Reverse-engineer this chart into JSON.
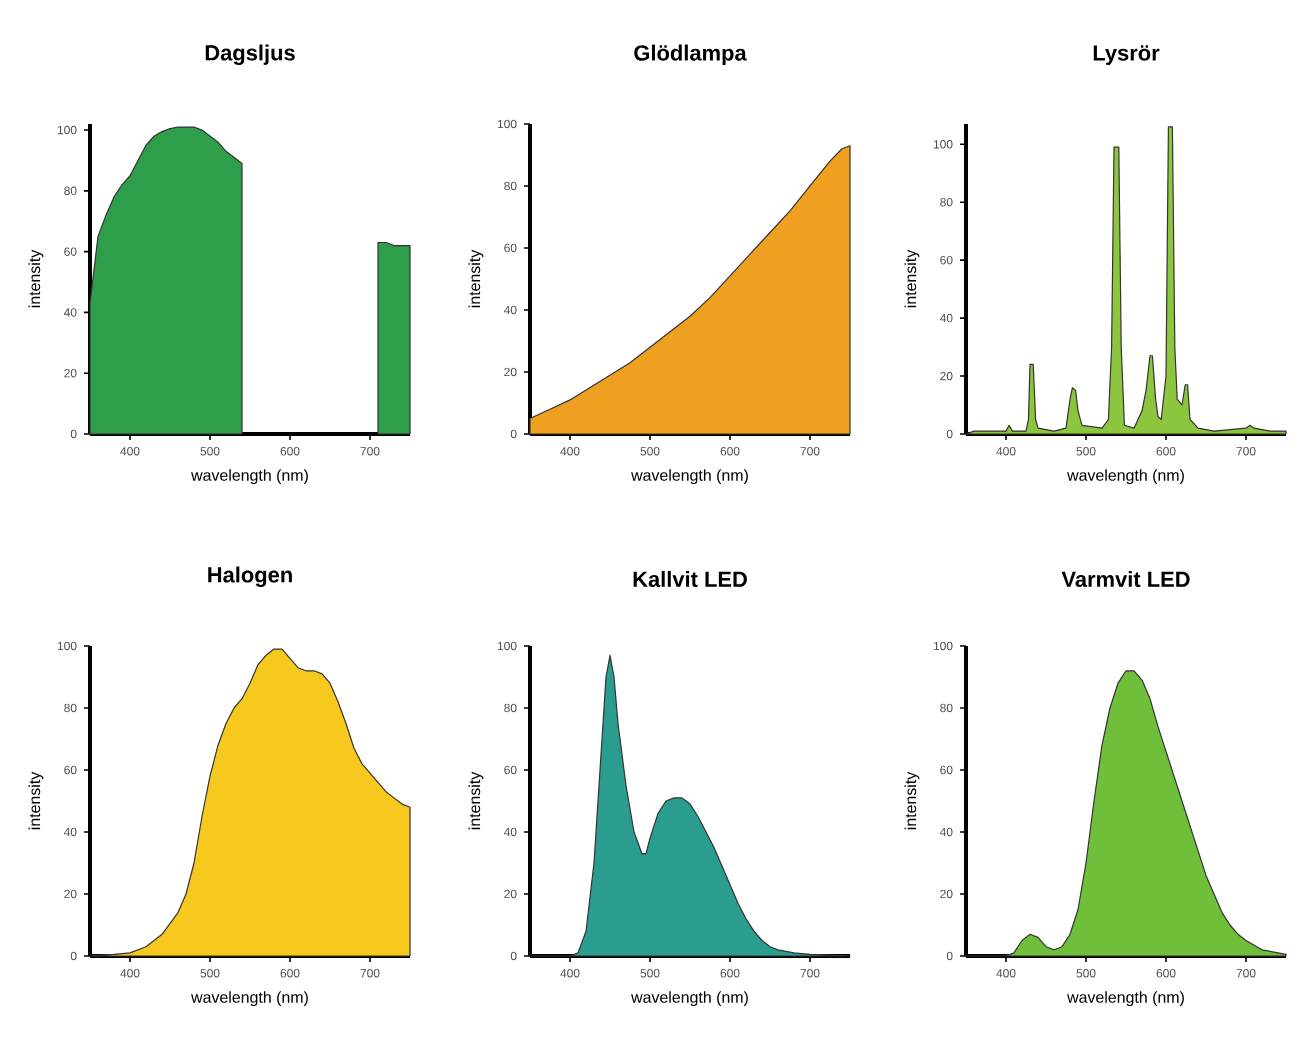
{
  "chart_data": [
    {
      "type": "area",
      "title": "Dagsljus",
      "xlabel": "wavelength (nm)",
      "ylabel": "intensity",
      "xlim": [
        350,
        750
      ],
      "ylim": [
        0,
        102
      ],
      "xticks": [
        400,
        500,
        600,
        700
      ],
      "yticks": [
        0,
        20,
        40,
        60,
        80,
        100
      ],
      "x": [
        350,
        360,
        370,
        380,
        390,
        400,
        410,
        420,
        430,
        440,
        450,
        460,
        470,
        480,
        490,
        500,
        510,
        520,
        530,
        540,
        550,
        560,
        580,
        600,
        620,
        640,
        660,
        680,
        700,
        710,
        720,
        730,
        740,
        750
      ],
      "series": [
        {
          "color": "#2e9e4a",
          "values": [
            43,
            65,
            72,
            78,
            82,
            85,
            90,
            95,
            98,
            99.5,
            100.5,
            101,
            101,
            101,
            100,
            98,
            96,
            93,
            91,
            89,
            null,
            null,
            null,
            null,
            null,
            null,
            null,
            null,
            null,
            63,
            63,
            62,
            62,
            62
          ]
        }
      ]
    },
    {
      "type": "area",
      "title": "Glödlampa",
      "xlabel": "wavelength (nm)",
      "ylabel": "intensity",
      "xlim": [
        350,
        750
      ],
      "ylim": [
        0,
        100
      ],
      "xticks": [
        400,
        500,
        600,
        700
      ],
      "yticks": [
        0,
        20,
        40,
        60,
        80,
        100
      ],
      "x": [
        350,
        375,
        400,
        425,
        450,
        475,
        500,
        525,
        550,
        575,
        600,
        625,
        650,
        675,
        700,
        725,
        740,
        750
      ],
      "series": [
        {
          "color": "#f0a020",
          "values": [
            5,
            8,
            11,
            15,
            19,
            23,
            28,
            33,
            38,
            44,
            51,
            58,
            65,
            72,
            80,
            88,
            92,
            93
          ]
        }
      ]
    },
    {
      "type": "area",
      "title": "Lysrör",
      "xlabel": "wavelength (nm)",
      "ylabel": "intensity",
      "xlim": [
        350,
        750
      ],
      "ylim": [
        0,
        107
      ],
      "xticks": [
        400,
        500,
        600,
        700
      ],
      "yticks": [
        0,
        20,
        40,
        60,
        80,
        100
      ],
      "x": [
        350,
        360,
        380,
        400,
        404,
        408,
        425,
        428,
        430,
        434,
        437,
        440,
        460,
        475,
        480,
        483,
        487,
        490,
        495,
        520,
        528,
        532,
        535,
        541,
        544,
        548,
        560,
        570,
        575,
        580,
        583,
        587,
        590,
        594,
        600,
        603,
        608,
        611,
        614,
        620,
        624,
        627,
        630,
        640,
        660,
        700,
        705,
        710,
        730,
        750
      ],
      "series": [
        {
          "color": "#8cc63f",
          "values": [
            0,
            1,
            1,
            1,
            3,
            1,
            1,
            5,
            24,
            24,
            5,
            2,
            1,
            2,
            12,
            16,
            15,
            8,
            3,
            2,
            5,
            30,
            99,
            99,
            30,
            3,
            2,
            8,
            15,
            27,
            27,
            12,
            6,
            5,
            20,
            106,
            106,
            30,
            12,
            10,
            17,
            17,
            5,
            2,
            1,
            2,
            3,
            2,
            1,
            1
          ]
        }
      ]
    },
    {
      "type": "area",
      "title": "Halogen",
      "xlabel": "wavelength (nm)",
      "ylabel": "intensity",
      "xlim": [
        350,
        750
      ],
      "ylim": [
        0,
        100
      ],
      "xticks": [
        400,
        500,
        600,
        700
      ],
      "yticks": [
        0,
        20,
        40,
        60,
        80,
        100
      ],
      "x": [
        350,
        380,
        400,
        420,
        440,
        460,
        470,
        480,
        490,
        500,
        510,
        520,
        530,
        540,
        550,
        560,
        570,
        580,
        590,
        600,
        610,
        620,
        630,
        640,
        650,
        660,
        670,
        680,
        690,
        700,
        710,
        720,
        730,
        740,
        750
      ],
      "series": [
        {
          "color": "#f7c81e",
          "values": [
            0,
            0.5,
            1,
            3,
            7,
            14,
            20,
            30,
            45,
            58,
            68,
            75,
            80,
            83,
            88,
            94,
            97,
            99,
            99,
            96,
            93,
            92,
            92,
            91,
            88,
            82,
            75,
            67,
            62,
            59,
            56,
            53,
            51,
            49,
            48
          ]
        }
      ]
    },
    {
      "type": "area",
      "title": "Kallvit LED",
      "xlabel": "wavelength (nm)",
      "ylabel": "intensity",
      "xlim": [
        350,
        750
      ],
      "ylim": [
        0,
        100
      ],
      "xticks": [
        400,
        500,
        600,
        700
      ],
      "yticks": [
        0,
        20,
        40,
        60,
        80,
        100
      ],
      "x": [
        350,
        400,
        410,
        420,
        430,
        440,
        445,
        450,
        455,
        460,
        470,
        480,
        490,
        495,
        500,
        510,
        520,
        530,
        540,
        550,
        560,
        570,
        580,
        590,
        600,
        610,
        620,
        630,
        640,
        650,
        660,
        680,
        700,
        730,
        750
      ],
      "series": [
        {
          "color": "#2a9d8f",
          "values": [
            0,
            0,
            1,
            8,
            30,
            70,
            90,
            97,
            90,
            75,
            55,
            40,
            33,
            33,
            38,
            46,
            50,
            51,
            51,
            49,
            45,
            40,
            35,
            29,
            23,
            17,
            12,
            8,
            5,
            3,
            2,
            1,
            0.5,
            0.2,
            0
          ]
        }
      ]
    },
    {
      "type": "area",
      "title": "Varmvit LED",
      "xlabel": "wavelength (nm)",
      "ylabel": "intensity",
      "xlim": [
        350,
        750
      ],
      "ylim": [
        0,
        100
      ],
      "xticks": [
        400,
        500,
        600,
        700
      ],
      "yticks": [
        0,
        20,
        40,
        60,
        80,
        100
      ],
      "x": [
        350,
        400,
        410,
        420,
        430,
        440,
        450,
        460,
        470,
        480,
        490,
        500,
        510,
        520,
        530,
        540,
        550,
        560,
        570,
        580,
        590,
        600,
        610,
        620,
        630,
        640,
        650,
        660,
        670,
        680,
        690,
        700,
        720,
        740,
        750
      ],
      "series": [
        {
          "color": "#6fbf3a",
          "values": [
            0,
            0,
            1,
            5,
            7,
            6,
            3,
            2,
            3,
            7,
            15,
            30,
            50,
            68,
            80,
            88,
            92,
            92,
            89,
            83,
            74,
            66,
            58,
            50,
            42,
            34,
            26,
            20,
            14,
            10,
            7,
            5,
            2,
            1,
            0.5
          ]
        }
      ]
    }
  ]
}
